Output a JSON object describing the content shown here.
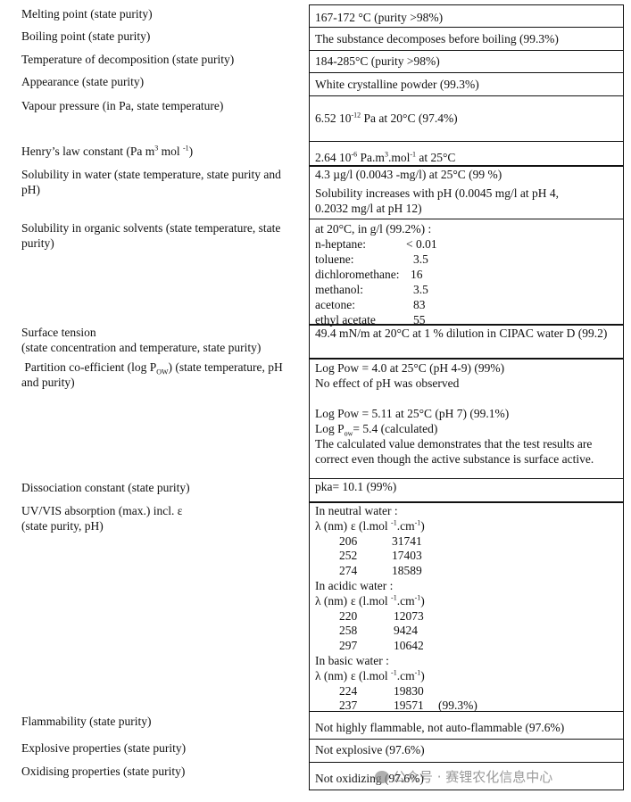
{
  "rows": {
    "melting": {
      "label": "Melting point (state purity)",
      "value": "167-172 °C (purity >98%)"
    },
    "boiling": {
      "label": "Boiling point (state purity)",
      "value": "The substance decomposes before boiling (99.3%)"
    },
    "decomposition": {
      "label": "Temperature of decomposition (state purity)",
      "value": "184-285°C (purity >98%)"
    },
    "appearance": {
      "label": "Appearance (state purity)",
      "value": "White crystalline powder (99.3%)"
    },
    "vapour": {
      "label": "Vapour pressure (in Pa, state temperature)",
      "v1": "6.52 10",
      "sup": "-12",
      "v2": " Pa at 20°C (97.4%)"
    },
    "henry": {
      "label1": "Henry’s law constant (Pa m",
      "lsup1": "3",
      "label2": " mol ",
      "lsup2": "-1",
      "label3": ")",
      "v1": "2.64 10",
      "sup1": "-6",
      "v2": " Pa.m",
      "sup2": "3",
      "v3": ".mol",
      "sup3": "-1",
      "v4": "  at 25°C"
    },
    "water": {
      "label": "Solubility in water (state temperature, state purity and pH)",
      "line1": "4.3 µg/l (0.0043 -mg/l) at 25°C (99 %)",
      "line2": "Solubility increases with pH (0.0045 mg/l at pH 4, 0.2032 mg/l at pH 12)"
    },
    "organic": {
      "label": "Solubility in organic solvents (state temperature, state purity)",
      "header": "at 20°C, in g/l (99.2%) :",
      "solvents": [
        {
          "name": "n-heptane:",
          "value": "< 0.01"
        },
        {
          "name": "toluene:",
          "value": "3.5"
        },
        {
          "name": "dichloromethane:",
          "value": "16"
        },
        {
          "name": "methanol:",
          "value": "3.5"
        },
        {
          "name": "acetone:",
          "value": "83"
        },
        {
          "name": "ethyl acetate",
          "value": "55"
        }
      ]
    },
    "surface": {
      "label1": "Surface tension",
      "label2": "(state concentration and temperature, state purity)",
      "value": "49.4 mN/m at 20°C at 1 % dilution in CIPAC water D (99.2)"
    },
    "partition": {
      "label1": "Partition co-efficient (log P",
      "lsub": "OW",
      "label2": ") (state temperature, pH and purity)",
      "line1": "Log Pow = 4.0 at 25°C (pH 4-9) (99%)",
      "line2": "No effect of pH was observed",
      "line3": "Log Pow = 5.11 at 25°C (pH 7) (99.1%)",
      "line4a": "Log P",
      "line4sub": "ow",
      "line4b": "= 5.4 (calculated)",
      "line5": "The calculated value demonstrates that the test results are correct even though the active substance is surface active."
    },
    "dissociation": {
      "label": "Dissociation constant (state purity)",
      "value": "pka= 10.1 (99%)"
    },
    "uv": {
      "label1": "UV/VIS absorption (max.) incl. ε",
      "label2": "(state purity, pH)",
      "col_a": "λ (nm)",
      "col_b1": "ε (l.mol ",
      "col_b_sup1": "-1",
      "col_b2": ".cm",
      "col_b_sup2": "-1",
      "col_b3": ")",
      "groups": [
        {
          "title": "In neutral water :",
          "data": [
            [
              "206",
              "31741"
            ],
            [
              "252",
              "17403"
            ],
            [
              "274",
              "18589"
            ]
          ]
        },
        {
          "title": "In acidic water :",
          "data": [
            [
              "220",
              "12073"
            ],
            [
              "258",
              "9424"
            ],
            [
              "297",
              "10642"
            ]
          ]
        },
        {
          "title": "In basic water :",
          "data": [
            [
              "224",
              "19830"
            ],
            [
              "237",
              "19571"
            ]
          ],
          "note": "(99.3%)"
        }
      ]
    },
    "flammability": {
      "label": "Flammability (state purity)",
      "value": "Not highly flammable, not auto-flammable (97.6%)"
    },
    "explosive": {
      "label": "Explosive properties (state purity)",
      "value": "Not explosive (97.6%)"
    },
    "oxidising": {
      "label": "Oxidising properties (state purity)",
      "value": "Not oxidizing (97.6%)"
    }
  },
  "watermark": "公众号 · 赛锂农化信息中心"
}
